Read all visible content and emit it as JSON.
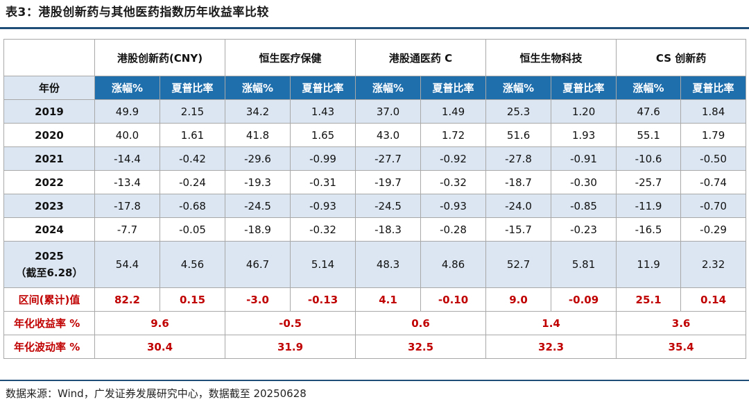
{
  "title": "表3：港股创新药与其他医药指数历年收益率比较",
  "table": {
    "index_headers": [
      "港股创新药(CNY)",
      "恒生医疗保健",
      "港股通医药 C",
      "恒生生物科技",
      "CS 创新药"
    ],
    "year_header": "年份",
    "sub_headers": [
      "涨幅%",
      "夏普比率"
    ],
    "rows": [
      {
        "year": "2019",
        "values": [
          "49.9",
          "2.15",
          "34.2",
          "1.43",
          "37.0",
          "1.49",
          "25.3",
          "1.20",
          "47.6",
          "1.84"
        ]
      },
      {
        "year": "2020",
        "values": [
          "40.0",
          "1.61",
          "41.8",
          "1.65",
          "43.0",
          "1.72",
          "51.6",
          "1.93",
          "55.1",
          "1.79"
        ]
      },
      {
        "year": "2021",
        "values": [
          "-14.4",
          "-0.42",
          "-29.6",
          "-0.99",
          "-27.7",
          "-0.92",
          "-27.8",
          "-0.91",
          "-10.6",
          "-0.50"
        ]
      },
      {
        "year": "2022",
        "values": [
          "-13.4",
          "-0.24",
          "-19.3",
          "-0.31",
          "-19.7",
          "-0.32",
          "-18.7",
          "-0.30",
          "-25.7",
          "-0.74"
        ]
      },
      {
        "year": "2023",
        "values": [
          "-17.8",
          "-0.68",
          "-24.5",
          "-0.93",
          "-24.5",
          "-0.93",
          "-24.0",
          "-0.85",
          "-11.9",
          "-0.70"
        ]
      },
      {
        "year": "2024",
        "values": [
          "-7.7",
          "-0.05",
          "-18.9",
          "-0.32",
          "-18.3",
          "-0.28",
          "-15.7",
          "-0.23",
          "-16.5",
          "-0.29"
        ]
      }
    ],
    "row_2025": {
      "year": "2025",
      "note": "（截至6.28）",
      "values": [
        "54.4",
        "4.56",
        "46.7",
        "5.14",
        "48.3",
        "4.86",
        "52.7",
        "5.81",
        "11.9",
        "2.32"
      ]
    },
    "cumulative": {
      "label": "区间(累计)值",
      "values": [
        "82.2",
        "0.15",
        "-3.0",
        "-0.13",
        "4.1",
        "-0.10",
        "9.0",
        "-0.09",
        "25.1",
        "0.14"
      ]
    },
    "annualized_return": {
      "label": "年化收益率 %",
      "values": [
        "9.6",
        "-0.5",
        "0.6",
        "1.4",
        "3.6"
      ]
    },
    "annualized_volatility": {
      "label": "年化波动率 %",
      "values": [
        "30.4",
        "31.9",
        "32.5",
        "32.3",
        "35.4"
      ]
    }
  },
  "source": "数据来源：Wind，广发证券发展研究中心，数据截至 20250628",
  "colors": {
    "header_blue": "#1f6fad",
    "shade": "#dbe6f2",
    "red": "#c00000",
    "rule": "#1f4e79"
  }
}
